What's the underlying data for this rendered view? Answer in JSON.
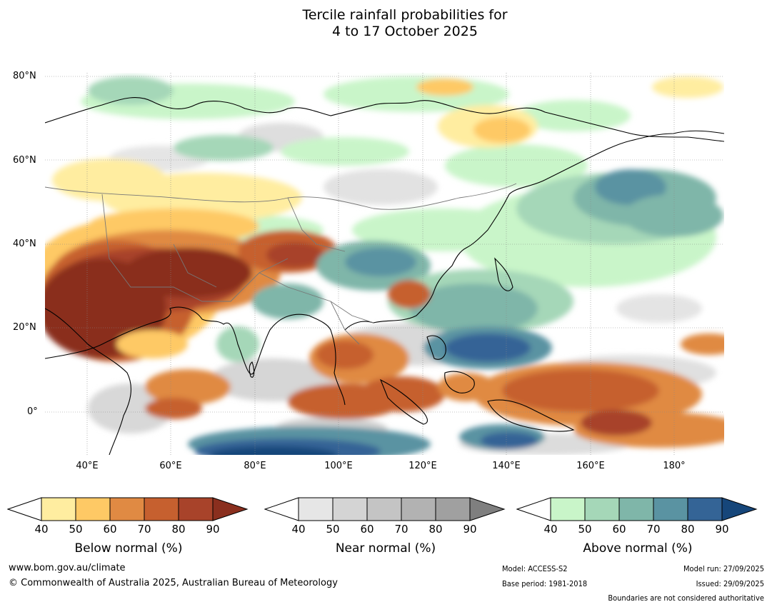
{
  "title_line1": "Tercile rainfall probabilities for",
  "title_line2": "4 to 17 October 2025",
  "lat_labels": [
    "80°N",
    "60°N",
    "40°N",
    "20°N",
    "0°"
  ],
  "lon_labels": [
    "40°E",
    "60°E",
    "80°E",
    "100°E",
    "120°E",
    "140°E",
    "160°E",
    "180°"
  ],
  "colorbars": [
    {
      "title": "Below normal (%)",
      "ticks": [
        "40",
        "50",
        "60",
        "70",
        "80",
        "90"
      ],
      "colors": [
        "#ffeda0",
        "#fec965",
        "#e08a43",
        "#c6602f",
        "#a8432a",
        "#8a2f1e"
      ]
    },
    {
      "title": "Near normal (%)",
      "ticks": [
        "40",
        "50",
        "60",
        "70",
        "80",
        "90"
      ],
      "colors": [
        "#e6e6e6",
        "#d4d4d4",
        "#c4c4c4",
        "#b2b2b2",
        "#a0a0a0",
        "#7f7f7f"
      ]
    },
    {
      "title": "Above normal (%)",
      "ticks": [
        "40",
        "50",
        "60",
        "70",
        "80",
        "90"
      ],
      "colors": [
        "#c9f5c9",
        "#a5d7b8",
        "#7fb6a9",
        "#5a93a2",
        "#346496",
        "#16467a"
      ]
    }
  ],
  "footer": {
    "website": "www.bom.gov.au/climate",
    "copyright": "© Commonwealth of Australia 2025, Australian Bureau of Meteorology",
    "model": "Model: ACCESS-S2",
    "base_period": "Base period: 1981-2018",
    "model_run": "Model run: 27/09/2025",
    "issued": "Issued: 29/09/2025",
    "disclaimer": "Boundaries are not considered authoritative"
  }
}
